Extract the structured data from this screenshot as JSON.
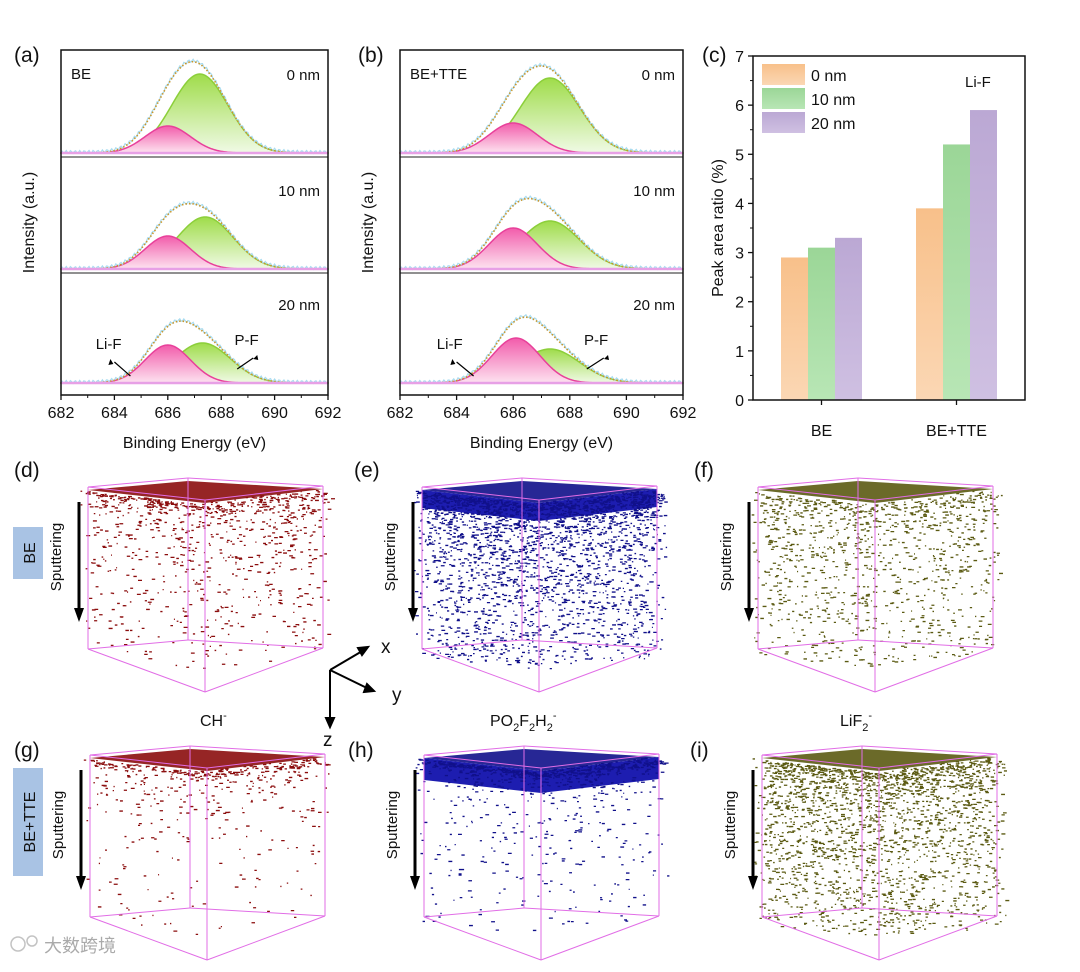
{
  "panel_labels": {
    "a": "(a)",
    "b": "(b)",
    "c": "(c)",
    "d": "(d)",
    "e": "(e)",
    "f": "(f)",
    "g": "(g)",
    "h": "(h)",
    "i": "(i)"
  },
  "chart_data": [
    {
      "type": "line",
      "panel": "a",
      "sample_label": "BE",
      "xlabel": "Binding Energy (eV)",
      "ylabel": "Intensity (a.u.)",
      "xlim": [
        682,
        692
      ],
      "xticks": [
        "682",
        "684",
        "686",
        "688",
        "690",
        "692"
      ],
      "annotations": {
        "lif": "Li-F",
        "pf": "P-F"
      },
      "depths": [
        {
          "label": "0 nm",
          "lif": {
            "center": 686.0,
            "height": 27
          },
          "pf": {
            "center": 687.2,
            "height": 79
          }
        },
        {
          "label": "10 nm",
          "lif": {
            "center": 686.0,
            "height": 33
          },
          "pf": {
            "center": 687.4,
            "height": 52
          }
        },
        {
          "label": "20 nm",
          "lif": {
            "center": 686.0,
            "height": 38
          },
          "pf": {
            "center": 687.3,
            "height": 40
          }
        }
      ]
    },
    {
      "type": "line",
      "panel": "b",
      "sample_label": "BE+TTE",
      "xlabel": "Binding Energy (eV)",
      "ylabel": "Intensity (a.u.)",
      "xlim": [
        682,
        692
      ],
      "xticks": [
        "682",
        "684",
        "686",
        "688",
        "690",
        "692"
      ],
      "annotations": {
        "lif": "Li-F",
        "pf": "P-F"
      },
      "depths": [
        {
          "label": "0 nm",
          "lif": {
            "center": 686.0,
            "height": 30
          },
          "pf": {
            "center": 687.3,
            "height": 75
          }
        },
        {
          "label": "10 nm",
          "lif": {
            "center": 686.0,
            "height": 41
          },
          "pf": {
            "center": 687.3,
            "height": 48
          }
        },
        {
          "label": "20 nm",
          "lif": {
            "center": 686.1,
            "height": 45
          },
          "pf": {
            "center": 687.3,
            "height": 34
          }
        }
      ]
    },
    {
      "type": "bar",
      "panel": "c",
      "title": "Li-F",
      "categories": [
        "BE",
        "BE+TTE"
      ],
      "ylabel": "Peak area ratio (%)",
      "ylim": [
        0,
        7
      ],
      "yticks": [
        "0",
        "1",
        "2",
        "3",
        "4",
        "5",
        "6",
        "7"
      ],
      "legend_position": "top-left",
      "series": [
        {
          "name": "0 nm",
          "values": [
            2.9,
            3.9
          ],
          "color": "#f8c594"
        },
        {
          "name": "10 nm",
          "values": [
            3.1,
            5.2
          ],
          "color": "#a4dba0"
        },
        {
          "name": "20 nm",
          "values": [
            3.3,
            5.9
          ],
          "color": "#c3b2d9"
        }
      ]
    }
  ],
  "tof": {
    "row_labels": [
      "BE",
      "BE+TTE"
    ],
    "sputtering_label": "Sputtering",
    "species": [
      {
        "label": "CH",
        "sup": "-",
        "color": "#8b0d0d"
      },
      {
        "label": "PO2F2H2",
        "sup": "-",
        "color": "#10108a"
      },
      {
        "label": "LiF2",
        "sup": "-",
        "color": "#5b5a12"
      }
    ],
    "axes": {
      "x": "x",
      "y": "y",
      "z": "z"
    }
  },
  "watermark": "大数跨境"
}
